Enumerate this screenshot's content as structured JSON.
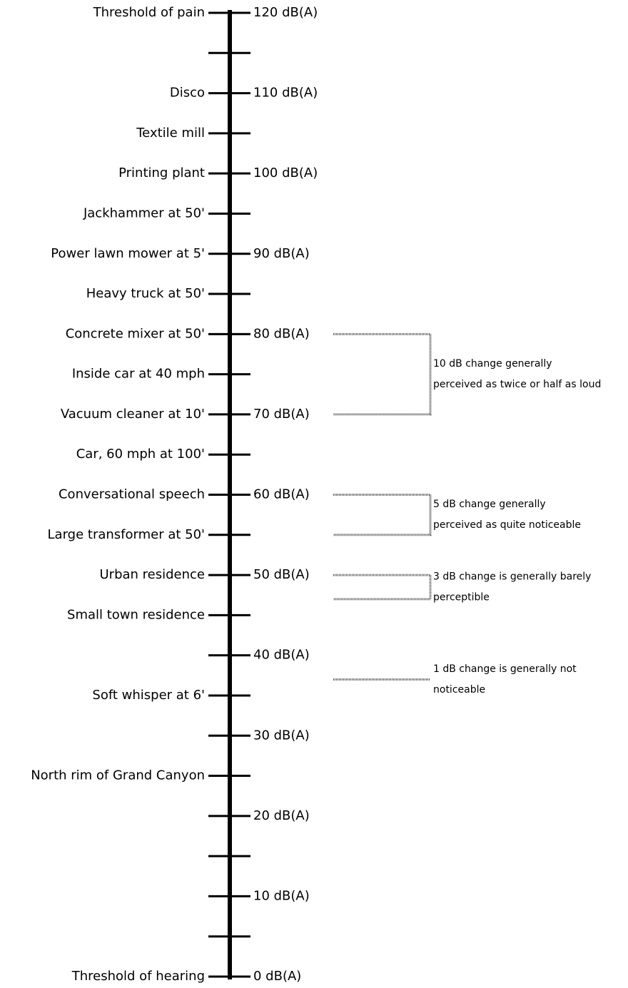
{
  "scale": {
    "ticks": [
      0,
      5,
      10,
      15,
      20,
      25,
      30,
      35,
      40,
      45,
      50,
      55,
      60,
      65,
      70,
      75,
      80,
      85,
      90,
      95,
      100,
      105,
      110,
      115,
      120
    ],
    "levels": [
      {
        "value": 120,
        "label": "120 dB(A)"
      },
      {
        "value": 110,
        "label": "110 dB(A)"
      },
      {
        "value": 100,
        "label": "100 dB(A)"
      },
      {
        "value": 90,
        "label": "90 dB(A)"
      },
      {
        "value": 80,
        "label": "80 dB(A)"
      },
      {
        "value": 70,
        "label": "70 dB(A)"
      },
      {
        "value": 60,
        "label": "60 dB(A)"
      },
      {
        "value": 50,
        "label": "50 dB(A)"
      },
      {
        "value": 40,
        "label": "40 dB(A)"
      },
      {
        "value": 30,
        "label": "30 dB(A)"
      },
      {
        "value": 20,
        "label": "20 dB(A)"
      },
      {
        "value": 10,
        "label": "10 dB(A)"
      },
      {
        "value": 0,
        "label": "0 dB(A)"
      }
    ],
    "sources": [
      {
        "label": "Threshold of pain",
        "level": 120
      },
      {
        "label": "Disco",
        "level": 110
      },
      {
        "label": "Textile mill",
        "level": 105
      },
      {
        "label": "Printing plant",
        "level": 100
      },
      {
        "label": "Jackhammer at 50'",
        "level": 95
      },
      {
        "label": "Power lawn mower at 5'",
        "level": 90
      },
      {
        "label": "Heavy truck at 50'",
        "level": 85
      },
      {
        "label": "Concrete mixer at 50'",
        "level": 80
      },
      {
        "label": "Inside car at 40 mph",
        "level": 75
      },
      {
        "label": "Vacuum cleaner at 10'",
        "level": 70
      },
      {
        "label": "Car, 60 mph at 100'",
        "level": 65
      },
      {
        "label": "Conversational speech",
        "level": 60
      },
      {
        "label": "Large transformer at 50'",
        "level": 55
      },
      {
        "label": "Urban residence",
        "level": 50
      },
      {
        "label": "Small town residence",
        "level": 45
      },
      {
        "label": "Soft whisper at 6'",
        "level": 35
      },
      {
        "label": "North rim of Grand Canyon",
        "level": 25
      },
      {
        "label": "Threshold of hearing",
        "level": 0
      }
    ],
    "brackets": [
      {
        "from": 80,
        "to": 70,
        "text": [
          "10 dB change generally",
          "perceived as twice or half as loud"
        ]
      },
      {
        "from": 60,
        "to": 55,
        "text": [
          "5 dB change generally",
          "perceived as quite noticeable"
        ]
      },
      {
        "from": 50,
        "to": 47,
        "text": [
          "3 dB change is generally barely",
          "perceptible"
        ]
      },
      {
        "from": 37,
        "text": [
          "1 dB change is generally not",
          "noticeable"
        ]
      }
    ]
  }
}
